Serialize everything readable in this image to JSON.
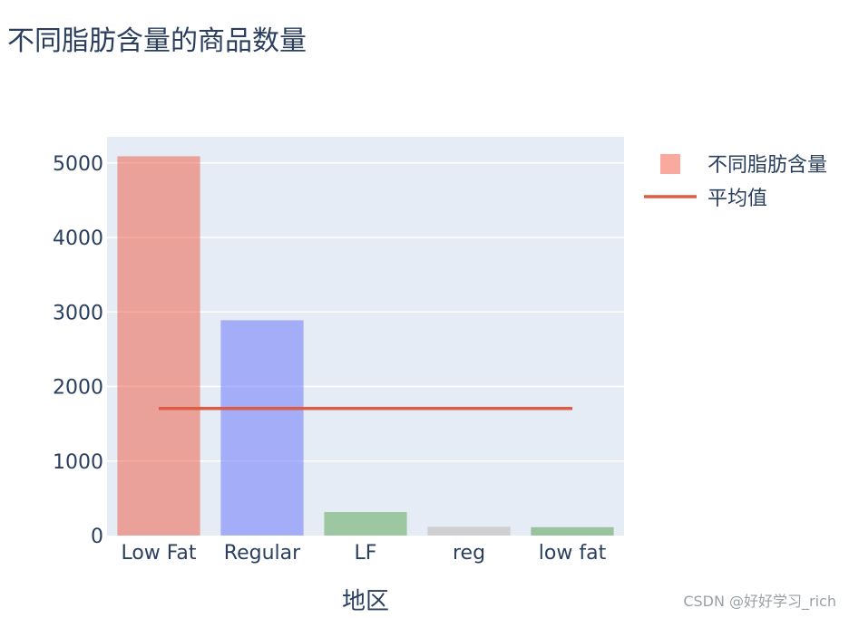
{
  "chart_data": {
    "type": "bar",
    "title": "不同脂肪含量的商品数量",
    "xlabel": "地区",
    "ylabel": "",
    "categories": [
      "Low Fat",
      "Regular",
      "LF",
      "reg",
      "low fat"
    ],
    "series": [
      {
        "name": "不同脂肪含量",
        "type": "bar",
        "values": [
          5089,
          2889,
          316,
          117,
          112
        ],
        "colors": [
          "#EF553B",
          "#636EFA",
          "#54A24B",
          "#BAB0AC",
          "#4C9A44"
        ],
        "opacity": 0.5
      },
      {
        "name": "平均值",
        "type": "line",
        "value": 1704.6,
        "color": "#DE5C43"
      }
    ],
    "yticks": [
      0,
      1000,
      2000,
      3000,
      4000,
      5000
    ],
    "ylim": [
      0,
      5350
    ],
    "grid": true,
    "legend_position": "top-right",
    "plot_bgcolor": "#E5ECF6"
  },
  "watermark": "CSDN @好好学习_rich"
}
